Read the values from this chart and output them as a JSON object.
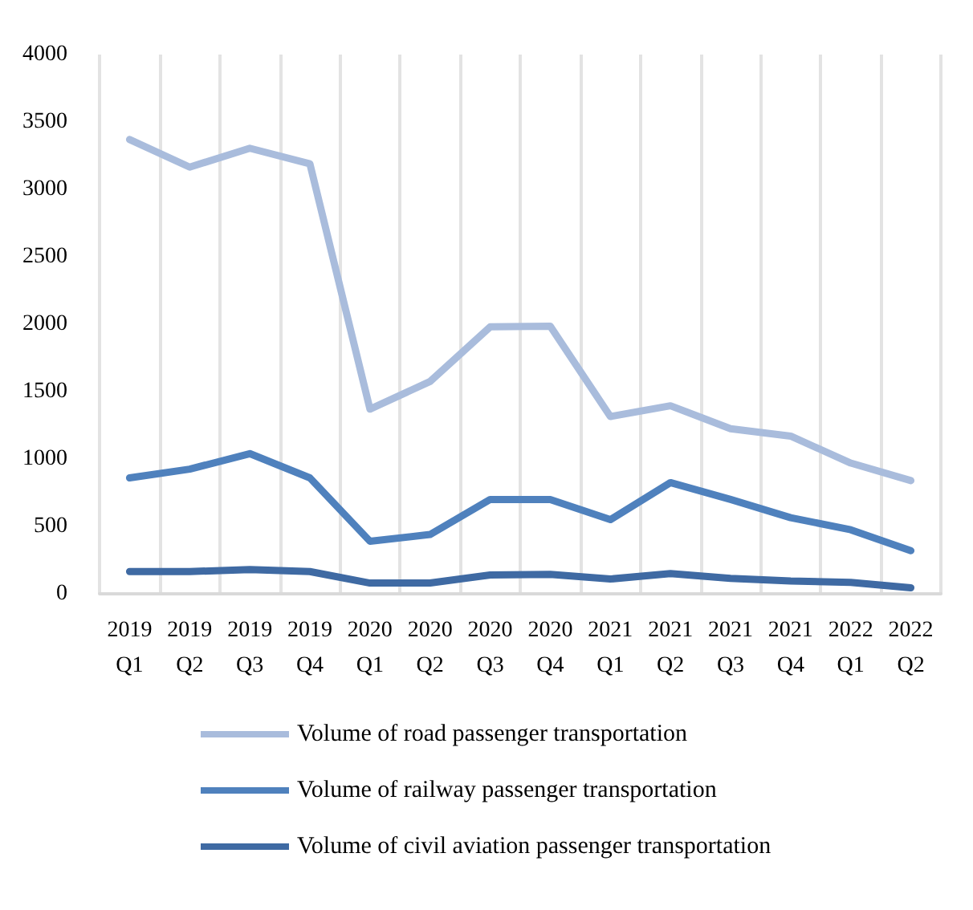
{
  "chart_data": {
    "type": "line",
    "categories": [
      "2019\nQ1",
      "2019\nQ2",
      "2019\nQ3",
      "2019\nQ4",
      "2020\nQ1",
      "2020\nQ2",
      "2020\nQ3",
      "2020\nQ4",
      "2021\nQ1",
      "2021\nQ2",
      "2021\nQ3",
      "2021\nQ4",
      "2022\nQ1",
      "2022\nQ2"
    ],
    "series": [
      {
        "name": "Volume of road passenger transportation",
        "color": "#a9bcdc",
        "values": [
          3370,
          3165,
          3305,
          3190,
          1370,
          1575,
          1980,
          1985,
          1315,
          1395,
          1225,
          1170,
          970,
          840
        ]
      },
      {
        "name": "Volume of railway passenger transportation",
        "color": "#4f81bd",
        "values": [
          860,
          925,
          1040,
          860,
          390,
          440,
          700,
          700,
          550,
          825,
          700,
          565,
          475,
          320
        ]
      },
      {
        "name": "Volume of civil aviation passenger transportation",
        "color": "#3f6aa3",
        "values": [
          165,
          165,
          180,
          165,
          80,
          80,
          140,
          145,
          110,
          150,
          115,
          95,
          85,
          45
        ]
      }
    ],
    "ylim": [
      0,
      4000
    ],
    "yticks": [
      0,
      500,
      1000,
      1500,
      2000,
      2500,
      3000,
      3500,
      4000
    ],
    "grid": "x",
    "legend": "bottom",
    "marker": "none",
    "line_style": "solid"
  }
}
